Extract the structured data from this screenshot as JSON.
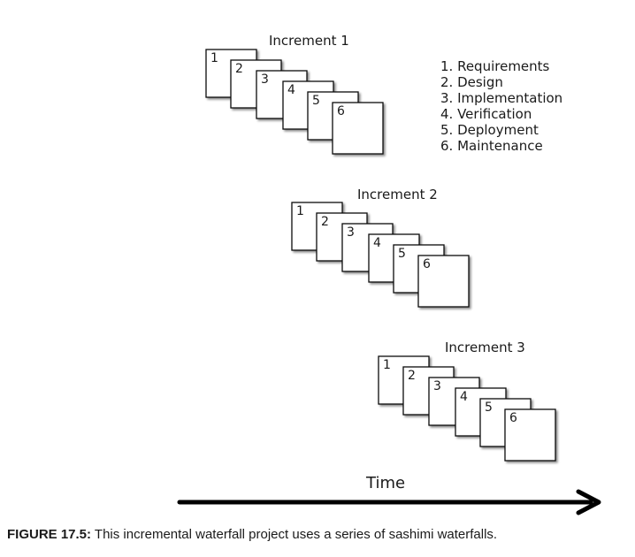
{
  "increments": [
    {
      "label": "Increment 1",
      "phases": [
        "1",
        "2",
        "3",
        "4",
        "5",
        "6"
      ]
    },
    {
      "label": "Increment 2",
      "phases": [
        "1",
        "2",
        "3",
        "4",
        "5",
        "6"
      ]
    },
    {
      "label": "Increment 3",
      "phases": [
        "1",
        "2",
        "3",
        "4",
        "5",
        "6"
      ]
    }
  ],
  "legend": {
    "items": [
      "1. Requirements",
      "2. Design",
      "3. Implementation",
      "4. Verification",
      "5. Deployment",
      "6. Maintenance"
    ]
  },
  "timeline": {
    "label": "Time"
  },
  "caption": {
    "figure": "FIGURE 17.5:",
    "text": " This incremental waterfall project uses a series of sashimi waterfalls."
  }
}
